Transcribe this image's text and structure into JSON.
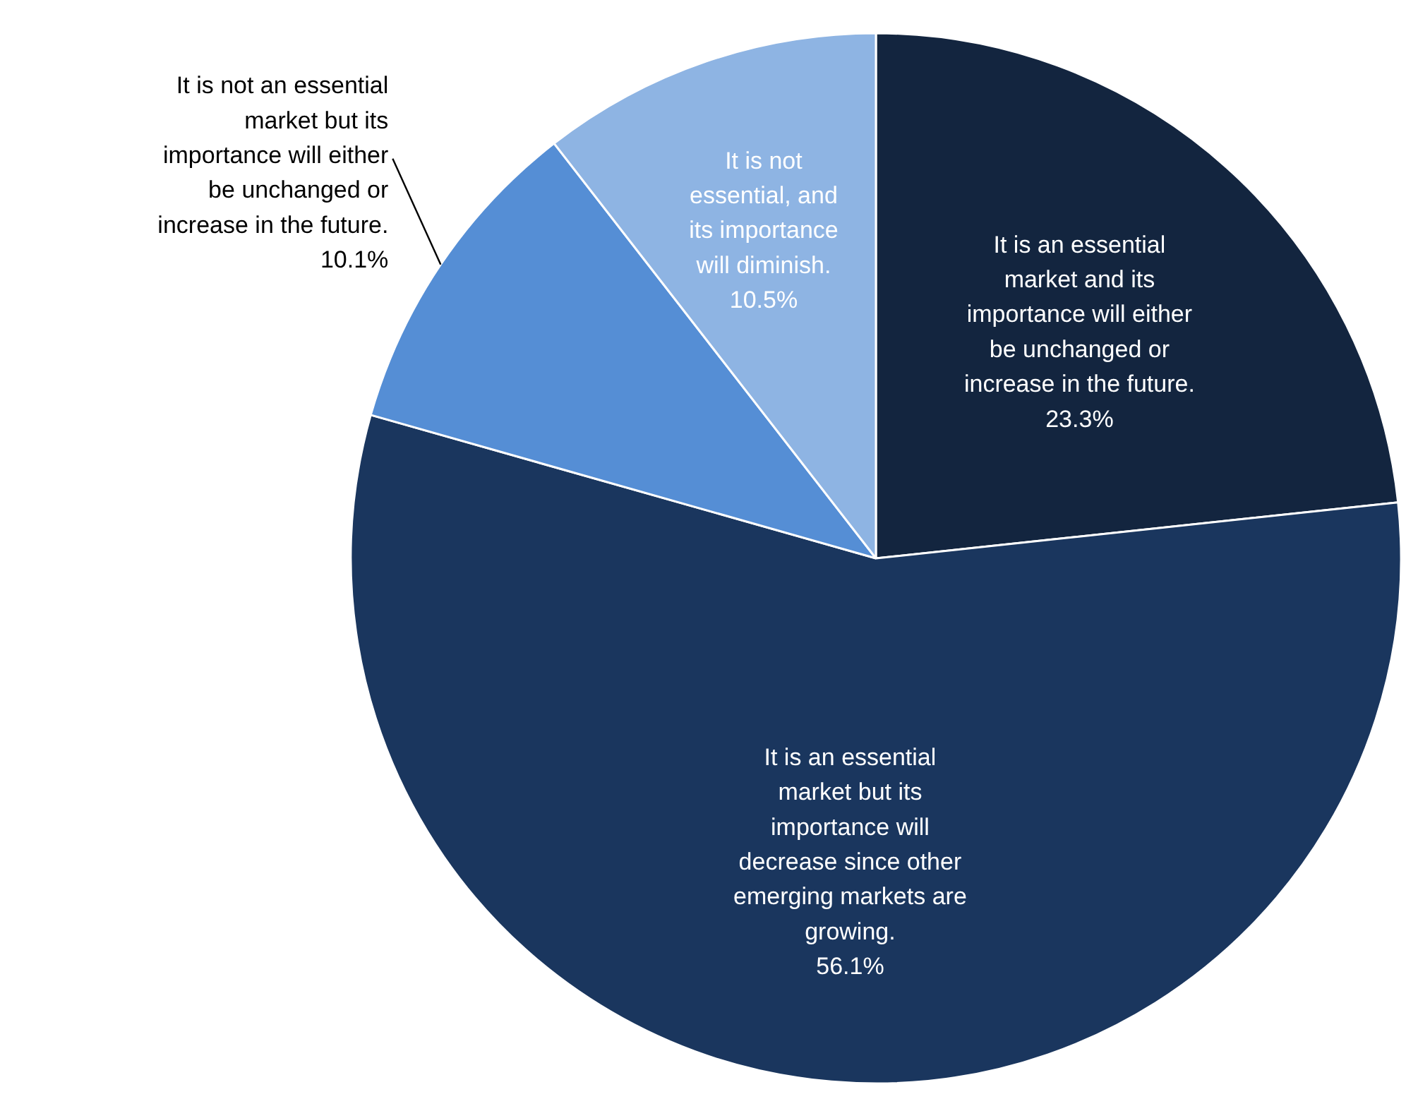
{
  "chart_data": {
    "type": "pie",
    "categories": [
      "It is an essential market and its importance will either be unchanged or increase in the future.",
      "It is an essential market but its importance will decrease since other emerging markets are growing.",
      "It is not an essential market but its importance will either be unchanged or increase in the future.",
      "It is not essential, and its importance will diminish."
    ],
    "values": [
      23.3,
      56.1,
      10.1,
      10.5
    ],
    "colors": [
      "#13253f",
      "#1a365e",
      "#558ed5",
      "#8eb4e3"
    ],
    "value_labels": [
      "23.3%",
      "56.1%",
      "10.1%",
      "10.5%"
    ]
  }
}
